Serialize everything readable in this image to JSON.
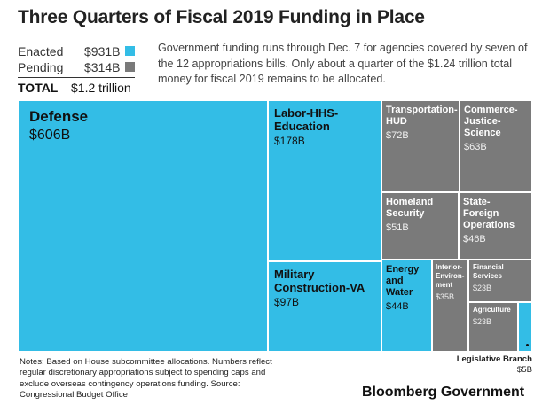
{
  "title": "Three Quarters of Fiscal 2019 Funding in Place",
  "legend": {
    "enacted": {
      "label": "Enacted",
      "value": "$931B",
      "color": "#33bde6"
    },
    "pending": {
      "label": "Pending",
      "value": "$314B",
      "color": "#7a7a7a"
    },
    "total": {
      "label": "TOTAL",
      "value": "$1.2 trillion"
    }
  },
  "description": "Government funding runs through Dec. 7 for agencies covered by seven of the 12 appropriations bills. Only about a quarter of the $1.24 trillion total money for fiscal 2019 remains to be allocated.",
  "notes": "Notes: Based on House subcommittee allocations. Numbers reflect regular discretionary appropriations subject to spending caps and exclude overseas contingency operations funding. Source: Congressional Budget Office",
  "brand": "Bloomberg Government",
  "chart_data": {
    "type": "treemap",
    "title": "Three Quarters of Fiscal 2019 Funding in Place",
    "unit": "$B",
    "items": [
      {
        "name": "Defense",
        "label": "$606B",
        "value": 606,
        "status": "Enacted"
      },
      {
        "name": "Labor-HHS-Education",
        "label": "$178B",
        "value": 178,
        "status": "Enacted"
      },
      {
        "name": "Military Construction-VA",
        "label": "$97B",
        "value": 97,
        "status": "Enacted"
      },
      {
        "name": "Transportation-HUD",
        "label": "$72B",
        "value": 72,
        "status": "Pending"
      },
      {
        "name": "Commerce-Justice-Science",
        "label": "$63B",
        "value": 63,
        "status": "Pending"
      },
      {
        "name": "Homeland Security",
        "label": "$51B",
        "value": 51,
        "status": "Pending"
      },
      {
        "name": "State-Foreign Operations",
        "label": "$46B",
        "value": 46,
        "status": "Pending"
      },
      {
        "name": "Energy and Water",
        "label": "$44B",
        "value": 44,
        "status": "Enacted"
      },
      {
        "name": "Interior-Environment",
        "label": "$35B",
        "value": 35,
        "status": "Pending"
      },
      {
        "name": "Financial Services",
        "label": "$23B",
        "value": 23,
        "status": "Pending"
      },
      {
        "name": "Agriculture",
        "label": "$23B",
        "value": 23,
        "status": "Pending"
      },
      {
        "name": "Legislative Branch",
        "label": "$5B",
        "value": 5,
        "status": "Enacted"
      }
    ]
  }
}
